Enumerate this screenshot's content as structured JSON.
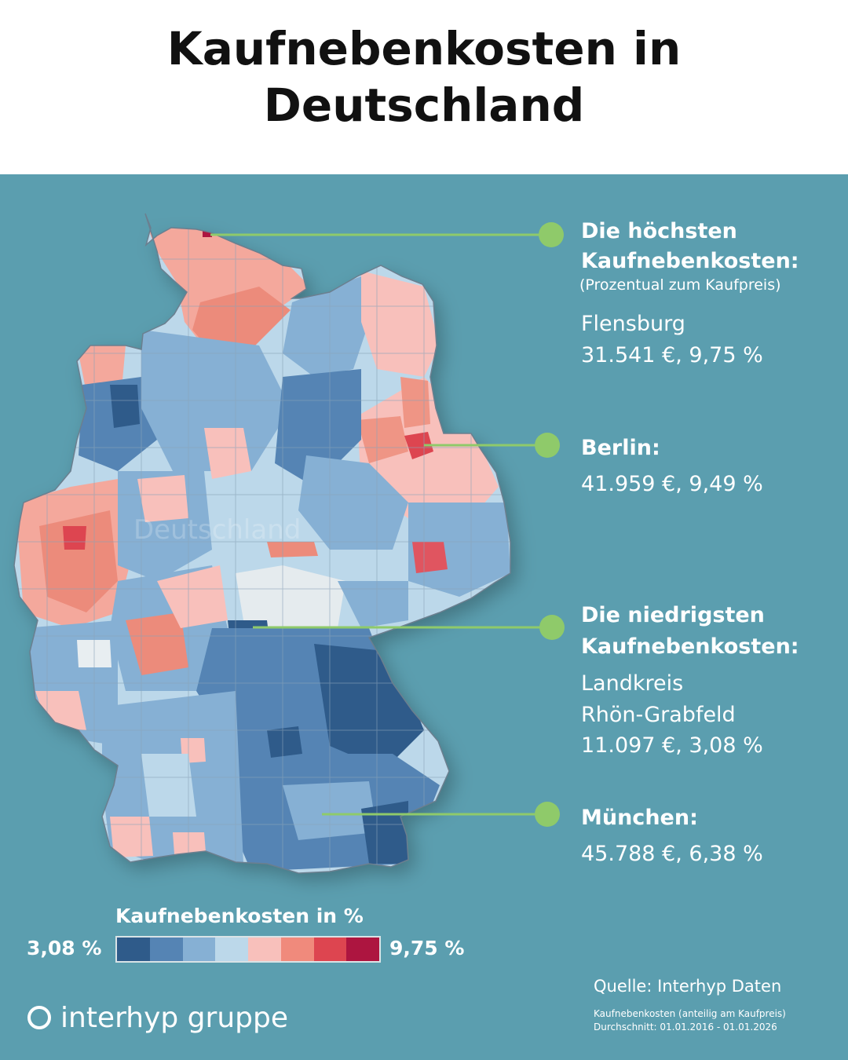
{
  "title": "Kaufnebenkosten in Deutschland",
  "map_watermark": "Deutschland",
  "annotations": {
    "highest": {
      "heading_line1": "Die höchsten",
      "heading_line2": "Kaufnebenkosten:",
      "subtitle": "(Prozentual zum Kaufpreis)",
      "place": "Flensburg",
      "value": "31.541 €, 9,75 %"
    },
    "berlin": {
      "heading": "Berlin:",
      "value": "41.959 €, 9,49 %"
    },
    "lowest": {
      "heading_line1": "Die niedrigsten",
      "heading_line2": "Kaufnebenkosten:",
      "place_line1": "Landkreis",
      "place_line2": "Rhön-Grabfeld",
      "value": "11.097 €, 3,08 %"
    },
    "muenchen": {
      "heading": "München:",
      "value": "45.788 €, 6,38 %"
    }
  },
  "legend": {
    "title": "Kaufnebenkosten in %",
    "min_label": "3,08 %",
    "max_label": "9,75 %",
    "colors": [
      "#2f5b8a",
      "#5584b4",
      "#86b0d4",
      "#bcd8ea",
      "#f8c0bb",
      "#f08a7c",
      "#dd4550",
      "#ad1540"
    ]
  },
  "source": "Quelle: Interhyp Daten",
  "note_line1": "Kaufnebenkosten (anteilig am Kaufpreis)",
  "note_line2": "Durchschnitt: 01.01.2016 - 01.01.2026",
  "logo": "interhyp gruppe",
  "colors": {
    "background": "#5b9eaf",
    "connector": "#8fca6a",
    "marker": "#8fca6a"
  }
}
